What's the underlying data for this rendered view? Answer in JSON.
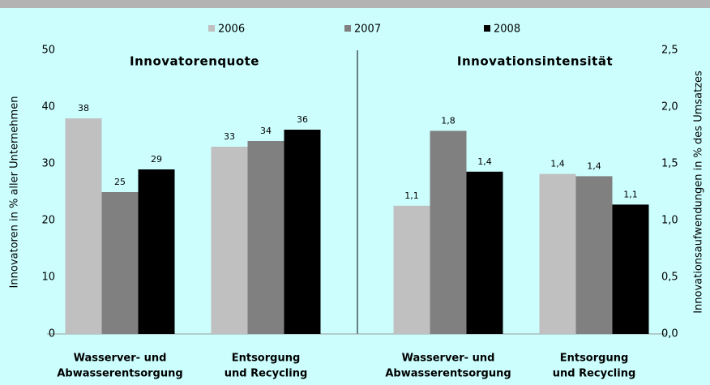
{
  "chart_data": [
    {
      "type": "bar",
      "title": "Innovatorenquote",
      "ylabel": "Innovatoren in % aller Unternehmen",
      "categories": [
        [
          "Wasserver- und",
          "Abwasserentsorgung"
        ],
        [
          "Entsorgung",
          "und Recycling"
        ]
      ],
      "series": [
        {
          "name": "2006",
          "color": "#c0c0c0",
          "values": [
            38,
            33
          ]
        },
        {
          "name": "2007",
          "color": "#808080",
          "values": [
            25,
            34
          ]
        },
        {
          "name": "2008",
          "color": "#000000",
          "values": [
            29,
            36
          ]
        }
      ],
      "ylim": [
        0,
        50
      ],
      "yticks": [
        0,
        10,
        20,
        30,
        40,
        50
      ]
    },
    {
      "type": "bar",
      "title": "Innovationsintensität",
      "y2label": "Innovationsaufwendungen in % des Umsatzes",
      "categories": [
        [
          "Wasserver- und",
          "Abwasserentsorgung"
        ],
        [
          "Entsorgung",
          "und Recycling"
        ]
      ],
      "series": [
        {
          "color": "#c0c0c0",
          "axis": "y2",
          "values": [
            1.13,
            1.41
          ],
          "value_labels": [
            "1,1",
            "1,4"
          ]
        },
        {
          "color": "#808080",
          "axis": "y2",
          "values": [
            1.79,
            1.39
          ],
          "value_labels": [
            "1,8",
            "1,4"
          ]
        },
        {
          "color": "#000000",
          "axis": "y2",
          "values": [
            1.43,
            1.14
          ],
          "value_labels": [
            "1,4",
            "1,1"
          ]
        }
      ],
      "y2lim": [
        0,
        2.5
      ],
      "y2ticks": [
        {
          "value": 0,
          "label": "0,0"
        },
        {
          "value": 0.5,
          "label": "0,5"
        },
        {
          "value": 1,
          "label": "1,0"
        },
        {
          "value": 1.5,
          "label": "1,5"
        },
        {
          "value": 2,
          "label": "2,0"
        },
        {
          "value": 2.5,
          "label": "2,5"
        }
      ]
    }
  ]
}
